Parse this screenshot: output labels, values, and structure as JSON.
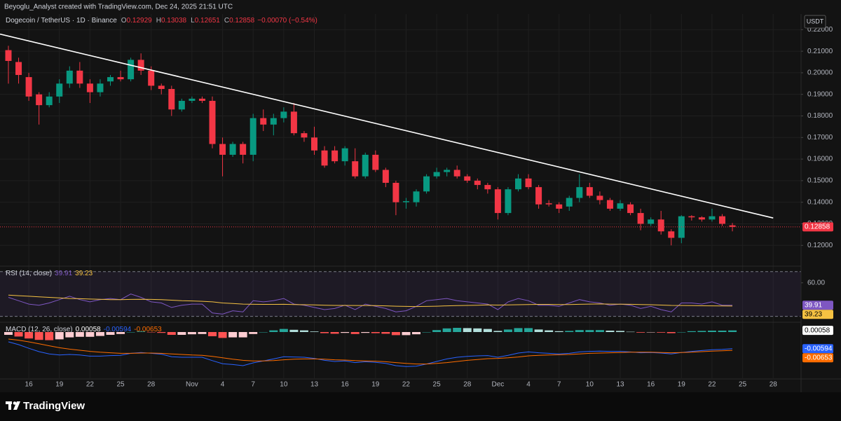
{
  "header": {
    "attribution": "Beyoglu_Analyst created with TradingView.com, Dec 24, 2025 21:51 UTC"
  },
  "footer": {
    "brand": "TradingView"
  },
  "chart_data": [
    {
      "type": "candlestick",
      "title": "Dogecoin / TetherUS · 1D · Binance",
      "currency": "USDT",
      "ohlc_labels": [
        "O",
        "H",
        "L",
        "C"
      ],
      "change_label": "−0.00070 (−0.54%)",
      "up_color": "#089981",
      "down_color": "#f23645",
      "grid": true,
      "categories": [
        null,
        null,
        "16",
        null,
        null,
        "19",
        null,
        null,
        "22",
        null,
        null,
        "25",
        null,
        null,
        "28",
        null,
        null,
        null,
        "Nov",
        null,
        null,
        "4",
        null,
        null,
        "7",
        null,
        null,
        "10",
        null,
        null,
        "13",
        null,
        null,
        "16",
        null,
        null,
        "19",
        null,
        null,
        "22",
        null,
        null,
        "25",
        null,
        null,
        "28",
        null,
        null,
        "Dec",
        null,
        null,
        "4",
        null,
        null,
        "7",
        null,
        null,
        "10",
        null,
        null,
        "13",
        null,
        null,
        "16",
        null,
        null,
        "19",
        null,
        null,
        "22",
        null,
        null,
        "25",
        null,
        null,
        "28"
      ],
      "open": [
        0.2105,
        0.205,
        0.198,
        0.19,
        0.185,
        0.189,
        0.195,
        0.201,
        0.195,
        0.191,
        0.196,
        0.198,
        0.197,
        0.206,
        0.201,
        0.194,
        0.1925,
        0.183,
        0.187,
        0.188,
        0.187,
        0.167,
        0.162,
        0.167,
        0.162,
        0.179,
        0.176,
        0.179,
        0.182,
        0.172,
        0.17,
        0.164,
        0.164,
        0.159,
        0.159,
        0.152,
        0.162,
        0.155,
        0.149,
        0.14,
        0.14,
        0.145,
        0.152,
        0.154,
        0.155,
        0.152,
        0.15,
        0.148,
        0.146,
        0.135,
        0.146,
        0.151,
        0.147,
        0.1395,
        0.139,
        0.138,
        0.142,
        0.147,
        0.143,
        0.141,
        0.137,
        0.139,
        0.135,
        0.13,
        0.132,
        0.1265,
        0.1235,
        0.1335,
        0.133,
        0.132,
        0.1335,
        0.12929,
        null,
        null,
        null,
        null
      ],
      "high": [
        0.2125,
        0.207,
        0.2,
        0.191,
        0.191,
        0.197,
        0.203,
        0.205,
        0.197,
        0.197,
        0.199,
        0.201,
        0.207,
        0.209,
        0.203,
        0.195,
        0.194,
        0.188,
        0.189,
        0.189,
        0.189,
        0.17,
        0.168,
        0.168,
        0.181,
        0.183,
        0.181,
        0.184,
        0.186,
        0.173,
        0.175,
        0.166,
        0.166,
        0.166,
        0.165,
        0.163,
        0.164,
        0.156,
        0.15,
        0.142,
        0.146,
        0.153,
        0.156,
        0.156,
        0.157,
        0.153,
        0.151,
        0.149,
        0.147,
        0.147,
        0.153,
        0.153,
        0.148,
        0.141,
        0.14,
        0.143,
        0.153,
        0.149,
        0.145,
        0.142,
        0.141,
        0.14,
        0.137,
        0.133,
        0.136,
        0.1275,
        0.134,
        0.134,
        0.1335,
        0.137,
        0.1345,
        0.13038,
        null,
        null,
        null,
        null
      ],
      "low": [
        0.195,
        0.195,
        0.187,
        0.176,
        0.184,
        0.186,
        0.193,
        0.193,
        0.186,
        0.189,
        0.194,
        0.196,
        0.196,
        0.199,
        0.192,
        0.19,
        0.18,
        0.182,
        0.186,
        0.186,
        0.165,
        0.152,
        0.161,
        0.158,
        0.159,
        0.173,
        0.171,
        0.177,
        0.171,
        0.168,
        0.162,
        0.156,
        0.158,
        0.157,
        0.151,
        0.151,
        0.154,
        0.147,
        0.134,
        0.137,
        0.138,
        0.144,
        0.151,
        0.152,
        0.151,
        0.149,
        0.146,
        0.144,
        0.132,
        0.134,
        0.145,
        0.146,
        0.137,
        0.138,
        0.135,
        0.136,
        0.14,
        0.142,
        0.139,
        0.136,
        0.136,
        0.134,
        0.127,
        0.129,
        0.125,
        0.12,
        0.121,
        0.1315,
        0.131,
        0.131,
        0.129,
        0.12651,
        null,
        null,
        null,
        null
      ],
      "close": [
        0.2055,
        0.199,
        0.189,
        0.185,
        0.189,
        0.195,
        0.201,
        0.195,
        0.191,
        0.195,
        0.198,
        0.197,
        0.206,
        0.201,
        0.194,
        0.1925,
        0.183,
        0.187,
        0.188,
        0.187,
        0.167,
        0.162,
        0.167,
        0.162,
        0.179,
        0.176,
        0.179,
        0.182,
        0.172,
        0.17,
        0.164,
        0.157,
        0.159,
        0.165,
        0.152,
        0.162,
        0.155,
        0.149,
        0.14,
        0.1405,
        0.145,
        0.152,
        0.154,
        0.155,
        0.152,
        0.15,
        0.148,
        0.146,
        0.135,
        0.146,
        0.151,
        0.147,
        0.139,
        0.139,
        0.137,
        0.142,
        0.147,
        0.143,
        0.141,
        0.137,
        0.1395,
        0.135,
        0.13,
        0.132,
        0.1265,
        0.1235,
        0.1335,
        0.133,
        0.132,
        0.1335,
        0.13,
        0.12858,
        null,
        null,
        null,
        null
      ],
      "trendline": {
        "from": [
          0,
          0.217
        ],
        "to": [
          75,
          0.1327
        ],
        "color": "#ffffff"
      },
      "ylim": [
        0.111,
        0.2266
      ],
      "yticks": [
        {
          "value": 0.12,
          "label": "0.12000"
        },
        {
          "value": 0.13,
          "label": "0.13000"
        },
        {
          "value": 0.14,
          "label": "0.14000"
        },
        {
          "value": 0.15,
          "label": "0.15000"
        },
        {
          "value": 0.16,
          "label": "0.16000"
        },
        {
          "value": 0.17,
          "label": "0.17000"
        },
        {
          "value": 0.18,
          "label": "0.18000"
        },
        {
          "value": 0.19,
          "label": "0.19000"
        },
        {
          "value": 0.2,
          "label": "0.20000"
        },
        {
          "value": 0.21,
          "label": "0.21000"
        },
        {
          "value": 0.22,
          "label": "0.22000"
        }
      ]
    },
    {
      "type": "line",
      "title": "RSI (14, close)",
      "bands": [
        70,
        30
      ],
      "band_fill": "#7e57c2",
      "grid": false,
      "ylim": [
        26,
        73
      ],
      "yticks": [
        {
          "value": 60,
          "label": "60.00"
        }
      ],
      "series": [
        {
          "color": "#7e57c2",
          "values": [
            47,
            44,
            41,
            40,
            42,
            45,
            48,
            45,
            43,
            45,
            46,
            45,
            50,
            47,
            43,
            42,
            38,
            40,
            41,
            41,
            33,
            32,
            35,
            34,
            44,
            43,
            44,
            46,
            41,
            40,
            38,
            36,
            37,
            40,
            36,
            41,
            39,
            37,
            34,
            35,
            39,
            44,
            45,
            46,
            44,
            43,
            42,
            41,
            36,
            43,
            46,
            44,
            40,
            40,
            39,
            42,
            45,
            43,
            42,
            40,
            41,
            40,
            37,
            39,
            36,
            34,
            42,
            42,
            41,
            43,
            40,
            39.91,
            null,
            null,
            null,
            null
          ]
        },
        {
          "color": "#f5c242",
          "values": [
            49,
            48.5,
            48,
            47.5,
            47,
            46.5,
            46,
            45.8,
            45.5,
            45.3,
            45,
            45,
            45.2,
            45.3,
            45.2,
            45,
            44.5,
            44,
            43.8,
            43.5,
            43,
            42,
            41.5,
            41,
            40.8,
            40.7,
            40.7,
            40.8,
            40.6,
            40.4,
            40.2,
            40,
            39.8,
            39.8,
            39.7,
            39.7,
            39.6,
            39.4,
            39.1,
            38.9,
            38.8,
            38.9,
            39.1,
            39.4,
            39.6,
            39.8,
            40,
            40.2,
            40.1,
            40.2,
            40.4,
            40.6,
            40.7,
            40.7,
            40.6,
            40.6,
            40.8,
            41,
            41.1,
            41,
            40.9,
            40.8,
            40.6,
            40.4,
            40.1,
            39.8,
            39.7,
            39.6,
            39.5,
            39.4,
            39.3,
            39.23,
            null,
            null,
            null,
            null
          ]
        }
      ]
    },
    {
      "type": "macd",
      "title": "MACD (12, 26, close)",
      "ylim": [
        -0.0165,
        0.003
      ],
      "histogram_colors": {
        "grow_above": "#26a69a",
        "fall_above": "#b2dfdb",
        "grow_below": "#ffcdd2",
        "fall_below": "#ff5252"
      },
      "histogram": [
        -0.001,
        -0.0016,
        -0.0023,
        -0.0028,
        -0.0029,
        -0.0026,
        -0.0019,
        -0.0017,
        -0.0017,
        -0.0014,
        -0.001,
        -0.0007,
        0,
        0.0002,
        -0.0001,
        -0.0003,
        -0.001,
        -0.001,
        -0.0008,
        -0.0007,
        -0.0015,
        -0.0021,
        -0.0019,
        -0.0019,
        -0.0007,
        0,
        0.0006,
        0.0011,
        0.0008,
        0.0006,
        0.0002,
        -0.0004,
        -0.0006,
        -0.0003,
        -0.0007,
        -0.0003,
        -0.0004,
        -0.0006,
        -0.0011,
        -0.0011,
        -0.0008,
        0,
        0.0007,
        0.0013,
        0.0015,
        0.0014,
        0.0013,
        0.0011,
        0.0004,
        0.0009,
        0.0014,
        0.0014,
        0.0009,
        0.0006,
        0.0003,
        0.0004,
        0.0007,
        0.0007,
        0.0007,
        0.0005,
        0.0004,
        0.0001,
        -0.0002,
        -0.0001,
        -0.0002,
        -0.0004,
        0,
        0.0003,
        0.0004,
        0.0005,
        0.0005,
        0.00058,
        null,
        null,
        null,
        null
      ],
      "series": [
        {
          "color": "#2962ff",
          "values": [
            -0.0035,
            -0.0045,
            -0.0058,
            -0.007,
            -0.0078,
            -0.0082,
            -0.008,
            -0.0082,
            -0.0086,
            -0.0086,
            -0.0084,
            -0.0083,
            -0.0076,
            -0.0073,
            -0.0076,
            -0.0079,
            -0.0088,
            -0.009,
            -0.009,
            -0.009,
            -0.0102,
            -0.0113,
            -0.0116,
            -0.012,
            -0.011,
            -0.0103,
            -0.0096,
            -0.0088,
            -0.0089,
            -0.009,
            -0.0094,
            -0.0101,
            -0.0105,
            -0.0103,
            -0.0109,
            -0.0106,
            -0.0108,
            -0.0112,
            -0.012,
            -0.0123,
            -0.0122,
            -0.0114,
            -0.0105,
            -0.0096,
            -0.009,
            -0.0087,
            -0.0085,
            -0.0084,
            -0.009,
            -0.0083,
            -0.0075,
            -0.0071,
            -0.0074,
            -0.0076,
            -0.0078,
            -0.0076,
            -0.0071,
            -0.0069,
            -0.0068,
            -0.0069,
            -0.0069,
            -0.0071,
            -0.0074,
            -0.0073,
            -0.0075,
            -0.0078,
            -0.0073,
            -0.0069,
            -0.0066,
            -0.0063,
            -0.0062,
            -0.00594,
            null,
            null,
            null,
            null
          ]
        },
        {
          "color": "#ff6d00",
          "values": [
            -0.0025,
            -0.0029,
            -0.0035,
            -0.0042,
            -0.0049,
            -0.0056,
            -0.0061,
            -0.0065,
            -0.0069,
            -0.0072,
            -0.0074,
            -0.0076,
            -0.0076,
            -0.0075,
            -0.0075,
            -0.0076,
            -0.0078,
            -0.008,
            -0.0082,
            -0.0083,
            -0.0087,
            -0.0092,
            -0.0097,
            -0.0101,
            -0.0103,
            -0.0103,
            -0.0102,
            -0.0099,
            -0.0097,
            -0.0096,
            -0.0096,
            -0.0097,
            -0.0099,
            -0.01,
            -0.0102,
            -0.0103,
            -0.0104,
            -0.0106,
            -0.0109,
            -0.0112,
            -0.0114,
            -0.0114,
            -0.0112,
            -0.0109,
            -0.0105,
            -0.0101,
            -0.0098,
            -0.0095,
            -0.0094,
            -0.0092,
            -0.0089,
            -0.0085,
            -0.0083,
            -0.0082,
            -0.0081,
            -0.008,
            -0.0078,
            -0.0076,
            -0.0075,
            -0.0074,
            -0.0073,
            -0.0072,
            -0.0072,
            -0.0072,
            -0.0073,
            -0.0074,
            -0.0073,
            -0.0072,
            -0.007,
            -0.0068,
            -0.0067,
            -0.00653,
            null,
            null,
            null,
            null
          ]
        }
      ]
    }
  ]
}
